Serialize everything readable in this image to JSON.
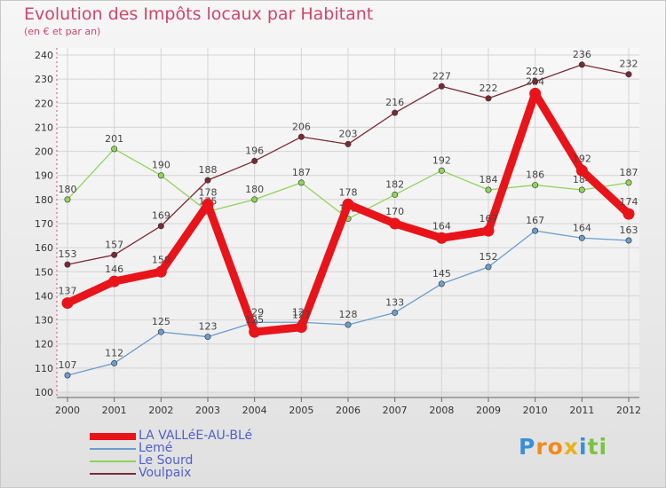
{
  "title": "Evolution des Impôts locaux par Habitant",
  "subtitle": "(en € et par an)",
  "logo": {
    "text": "Proxiti",
    "letters": [
      "P",
      "r",
      "o",
      "x",
      "i",
      "t",
      "i"
    ],
    "colors": [
      "#3a8fd8",
      "#f08a1c",
      "#f08a1c",
      "#e8b21a",
      "#3a8fd8",
      "#7cc242",
      "#7cc242"
    ]
  },
  "chart_data": {
    "type": "line",
    "title": "Evolution des Impôts locaux par Habitant",
    "subtitle": "(en € et par an)",
    "xlabel": "",
    "ylabel": "",
    "ylim": [
      100,
      240
    ],
    "yticks": [
      100,
      110,
      120,
      130,
      140,
      150,
      160,
      170,
      180,
      190,
      200,
      210,
      220,
      230,
      240
    ],
    "categories": [
      "2000",
      "2001",
      "2002",
      "2003",
      "2004",
      "2005",
      "2006",
      "2007",
      "2008",
      "2009",
      "2010",
      "2011",
      "2012"
    ],
    "grid": true,
    "legend_position": "bottom-left",
    "series": [
      {
        "name": "Voulpaix",
        "color": "#7a2a32",
        "values": [
          153,
          157,
          169,
          188,
          196,
          206,
          203,
          216,
          227,
          222,
          229,
          236,
          232
        ]
      },
      {
        "name": "Le Sourd",
        "color": "#8fd45a",
        "values": [
          180,
          201,
          190,
          175,
          180,
          187,
          172,
          182,
          192,
          184,
          186,
          184,
          187
        ]
      },
      {
        "name": "Lemé",
        "color": "#6a9ccc",
        "values": [
          107,
          112,
          125,
          123,
          129,
          129,
          128,
          133,
          145,
          152,
          167,
          164,
          163
        ]
      },
      {
        "name": "LA VALLéE-AU-BLé",
        "color": "#e8141a",
        "values": [
          137,
          146,
          150,
          178,
          125,
          127,
          178,
          170,
          164,
          167,
          224,
          192,
          174
        ]
      }
    ],
    "legend": [
      "LA VALLéE-AU-BLé",
      "Lemé",
      "Le Sourd",
      "Voulpaix"
    ]
  }
}
